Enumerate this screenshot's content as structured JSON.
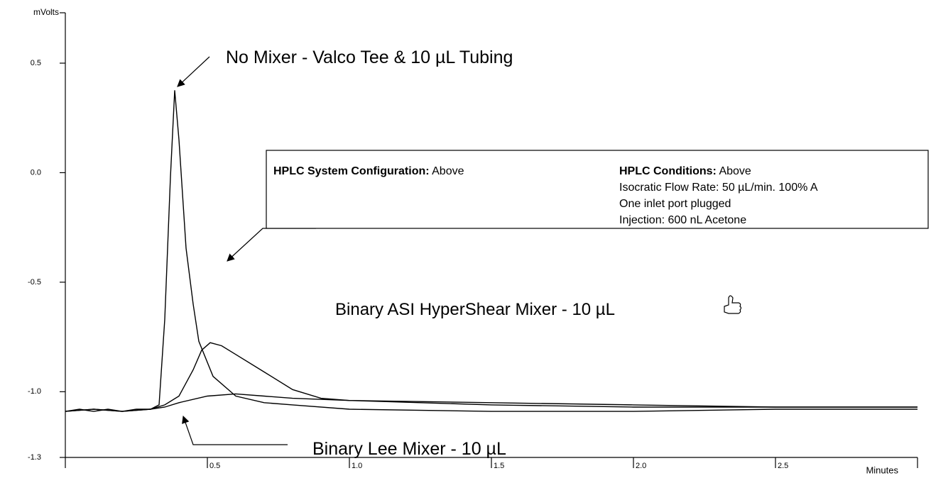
{
  "chart_data": {
    "type": "line",
    "y_label": "mVolts",
    "x_label": "Minutes",
    "xlim": [
      0,
      3
    ],
    "ylim": [
      -1.3,
      0.73
    ],
    "xticks": [
      0.5,
      {
        "value": 1,
        "label": "1.0"
      },
      1.5,
      {
        "value": 2,
        "label": "2.0"
      },
      2.5
    ],
    "yticks": [
      0.5,
      {
        "value": 0,
        "label": "0.0"
      },
      -0.5,
      {
        "value": -1,
        "label": "-1.0"
      },
      -1.3
    ],
    "series": [
      {
        "name": "No Mixer - Valco Tee & 10 µL Tubing",
        "color": "#000000",
        "x": [
          0,
          0.05,
          0.1,
          0.15,
          0.2,
          0.25,
          0.3,
          0.33,
          0.35,
          0.37,
          0.385,
          0.4,
          0.425,
          0.45,
          0.47,
          0.52,
          0.6,
          0.7,
          0.8,
          1.0,
          1.5,
          2.0,
          2.5,
          3.0
        ],
        "values": [
          -1.09,
          -1.08,
          -1.09,
          -1.08,
          -1.09,
          -1.08,
          -1.08,
          -1.06,
          -0.67,
          -0.02,
          0.376,
          0.15,
          -0.345,
          -0.6,
          -0.77,
          -0.93,
          -1.02,
          -1.05,
          -1.06,
          -1.08,
          -1.09,
          -1.09,
          -1.08,
          -1.08
        ]
      },
      {
        "name": "Binary ASI HyperShear Mixer - 10 µL",
        "color": "#000000",
        "x": [
          0,
          0.1,
          0.2,
          0.3,
          0.35,
          0.4,
          0.45,
          0.48,
          0.51,
          0.55,
          0.6,
          0.7,
          0.8,
          0.9,
          1.0,
          1.5,
          2.0,
          2.5,
          3.0
        ],
        "values": [
          -1.09,
          -1.08,
          -1.09,
          -1.08,
          -1.06,
          -1.02,
          -0.9,
          -0.81,
          -0.776,
          -0.79,
          -0.83,
          -0.91,
          -0.99,
          -1.03,
          -1.04,
          -1.06,
          -1.07,
          -1.07,
          -1.07
        ]
      },
      {
        "name": "Binary Lee Mixer - 10 µL",
        "color": "#000000",
        "x": [
          0,
          0.1,
          0.2,
          0.3,
          0.35,
          0.4,
          0.5,
          0.6,
          0.7,
          0.8,
          1.0,
          1.5,
          2.0,
          2.5,
          3.0
        ],
        "values": [
          -1.09,
          -1.08,
          -1.09,
          -1.08,
          -1.07,
          -1.05,
          -1.02,
          -1.01,
          -1.02,
          -1.03,
          -1.04,
          -1.05,
          -1.06,
          -1.07,
          -1.07
        ]
      }
    ],
    "info_box": {
      "left": {
        "label": "HPLC System Configuration:",
        "value": "Above"
      },
      "right": {
        "label": "HPLC Conditions:",
        "value": "Above",
        "lines": [
          "Isocratic Flow Rate:  50 µL/min. 100% A",
          "One inlet port plugged",
          "Injection:  600 nL Acetone"
        ]
      }
    }
  }
}
